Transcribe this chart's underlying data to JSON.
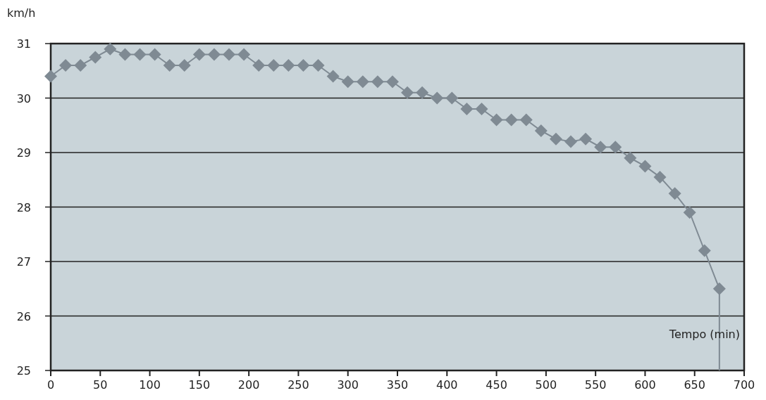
{
  "chart_data": {
    "type": "line",
    "ylabel": "km/h",
    "xlabel": "Tempo (min)",
    "xlim": [
      0,
      700
    ],
    "xticks": [
      0,
      50,
      100,
      150,
      200,
      250,
      300,
      350,
      400,
      450,
      500,
      550,
      600,
      650,
      700
    ],
    "ylim": [
      25,
      31
    ],
    "yticks": [
      25,
      26,
      27,
      28,
      29,
      30,
      31
    ],
    "grid": "y",
    "marker": "diamond",
    "series": [
      {
        "color": "#7f8a93",
        "x": [
          0,
          15,
          30,
          45,
          60,
          75,
          90,
          105,
          120,
          135,
          150,
          165,
          180,
          195,
          210,
          225,
          240,
          255,
          270,
          285,
          300,
          315,
          330,
          345,
          360,
          375,
          390,
          405,
          420,
          435,
          450,
          465,
          480,
          495,
          510,
          525,
          540,
          555,
          570,
          585,
          600,
          615,
          630,
          645,
          660,
          675
        ],
        "values": [
          30.4,
          30.6,
          30.6,
          30.75,
          30.9,
          30.8,
          30.8,
          30.8,
          30.6,
          30.6,
          30.8,
          30.8,
          30.8,
          30.8,
          30.6,
          30.6,
          30.6,
          30.6,
          30.6,
          30.4,
          30.3,
          30.3,
          30.3,
          30.3,
          30.1,
          30.1,
          30.0,
          30.0,
          29.8,
          29.8,
          29.6,
          29.6,
          29.6,
          29.4,
          29.25,
          29.2,
          29.25,
          29.1,
          29.1,
          28.9,
          28.75,
          28.55,
          28.25,
          27.9,
          27.2,
          26.5
        ]
      },
      {
        "color": "#7f8a93",
        "marker": "none",
        "x": [
          675,
          675
        ],
        "values": [
          26.5,
          25
        ]
      }
    ]
  }
}
